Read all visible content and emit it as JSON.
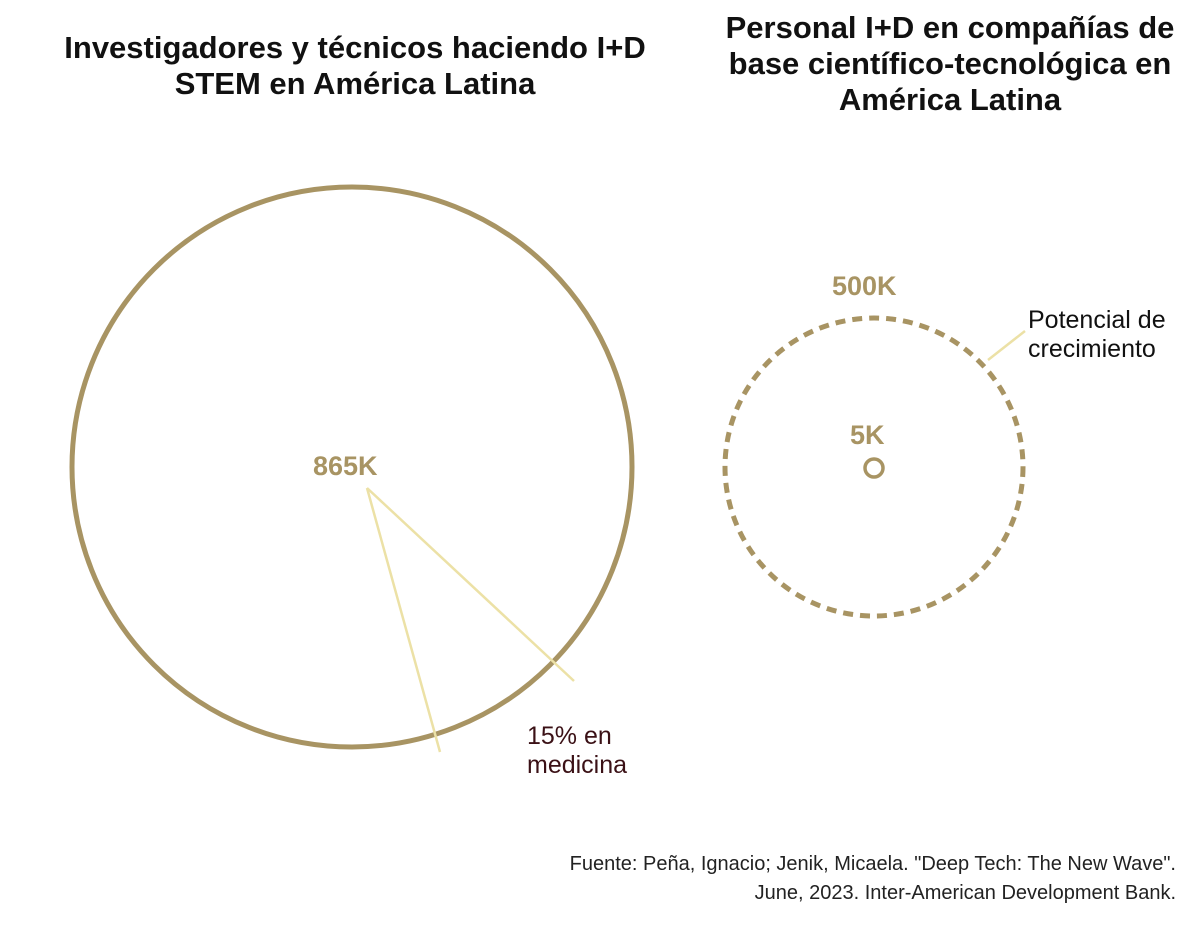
{
  "colors": {
    "accent": "#a89463",
    "pointer": "#ece1a6",
    "dark_label": "#3b1116",
    "text": "#111111"
  },
  "chart_data": [
    {
      "type": "proportional-circle",
      "title": "Investigadores y técnicos haciendo I+D STEM en América Latina",
      "circles": [
        {
          "name": "",
          "value": 865000,
          "label": "865K",
          "style": "solid"
        }
      ],
      "annotations": [
        {
          "text_line1": "15% en",
          "text_line2": "medicina",
          "share": 0.15
        }
      ]
    },
    {
      "type": "proportional-circle",
      "title": "Personal I+D en compañías de base científico-tecnológica en América Latina",
      "circles": [
        {
          "name": "",
          "value": 5000,
          "label": "5K",
          "style": "solid"
        },
        {
          "name": "",
          "value": 500000,
          "label": "500K",
          "style": "dashed"
        }
      ],
      "annotations": [
        {
          "text_line1": "Potencial de",
          "text_line2": "crecimiento"
        }
      ]
    }
  ],
  "source": {
    "line1": "Fuente: Peña, Ignacio; Jenik, Micaela. \"Deep Tech: The New Wave\".",
    "line2": "June, 2023. Inter-American Development Bank."
  }
}
